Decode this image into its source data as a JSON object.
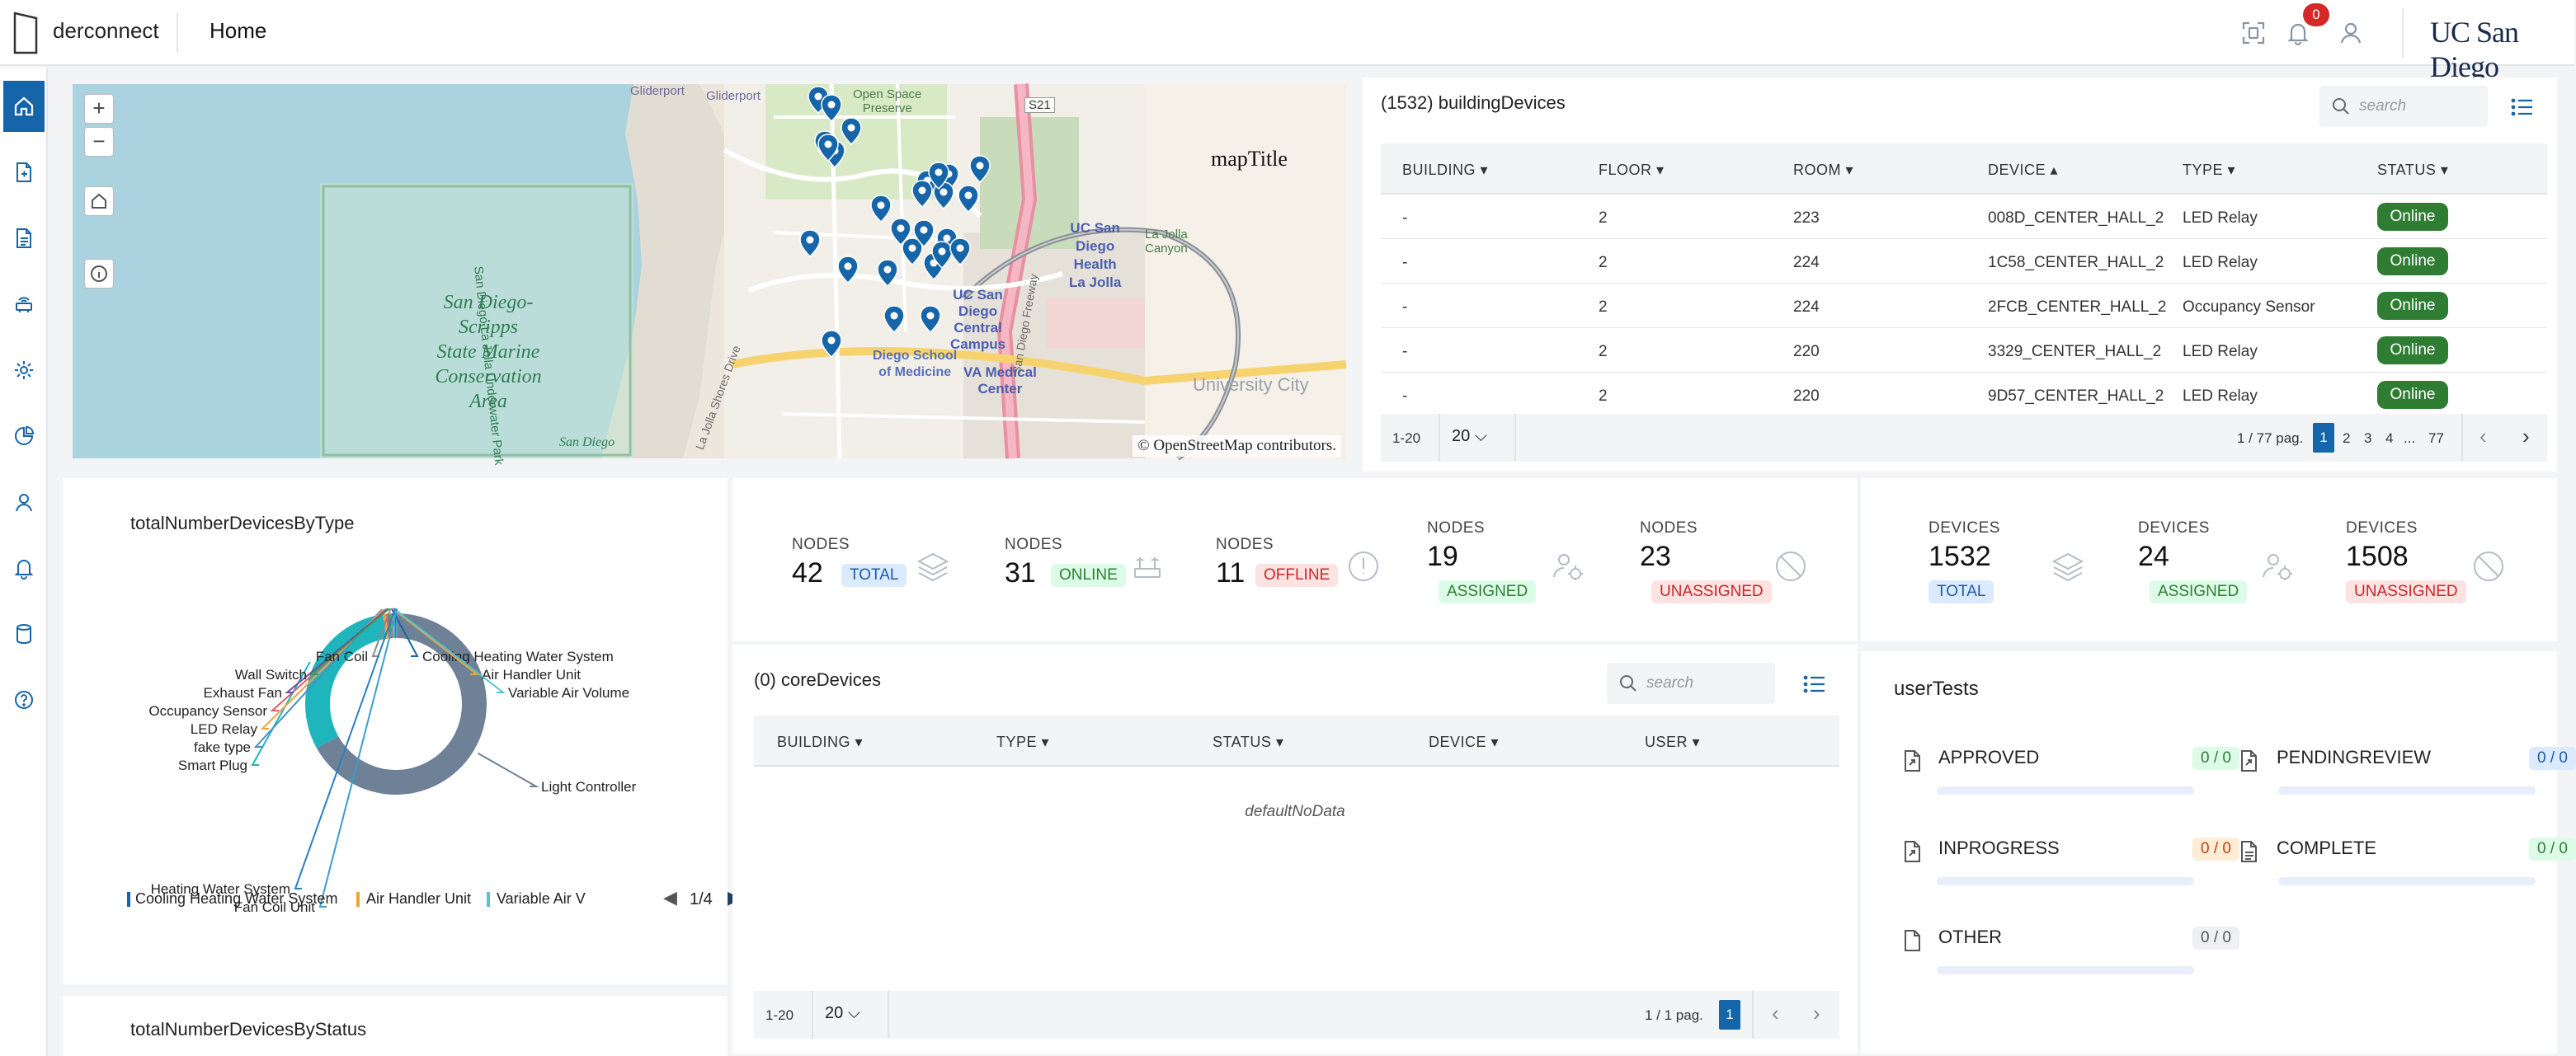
{
  "header": {
    "app_name": "derconnect",
    "breadcrumb": "Home",
    "notifications_count": "0",
    "brand": "UC San Diego",
    "icons": [
      "fullscreen-icon",
      "bell-icon",
      "user-icon"
    ]
  },
  "sidebar": {
    "items": [
      {
        "name": "home",
        "icon": "home-icon",
        "active": true
      },
      {
        "name": "documents-add",
        "icon": "file-plus-icon"
      },
      {
        "name": "reports",
        "icon": "file-text-icon"
      },
      {
        "name": "devices",
        "icon": "router-icon"
      },
      {
        "name": "settings",
        "icon": "gear-icon"
      },
      {
        "name": "analytics",
        "icon": "pie-chart-icon"
      },
      {
        "name": "users",
        "icon": "user-icon"
      },
      {
        "name": "notifications",
        "icon": "bell-icon"
      },
      {
        "name": "database",
        "icon": "database-icon"
      },
      {
        "name": "help",
        "icon": "help-icon"
      }
    ]
  },
  "map": {
    "title": "mapTitle",
    "zoom_in": "+",
    "zoom_out": "−",
    "attribution": "© OpenStreetMap contributors.",
    "labels": {
      "reserve": "San Diego-\nScripps\nState Marine\nConservation\nArea",
      "campus": "UC San\nDiego\nCentral\nCampus",
      "health": "UC San\nDiego\nHealth\nLa Jolla",
      "va": "VA Medical\nCenter",
      "school": "Diego School\nof Medicine",
      "university_city": "University City",
      "gliderport1": "Gliderport",
      "gliderport2": "Gliderport",
      "open_space": "Open Space\nPreserve",
      "route": "S21",
      "la_jolla_canyon": "La Jolla\nCanyon",
      "underwater_park": "San Diego La Jolla Underwater Park",
      "shores": "La Jolla Shores Drive",
      "freeway": "San Diego Freeway",
      "sd": "San Diego"
    }
  },
  "building_devices": {
    "title": "(1532) buildingDevices",
    "search_placeholder": "search",
    "columns": [
      "BUILDING",
      "FLOOR",
      "ROOM",
      "DEVICE",
      "TYPE",
      "STATUS"
    ],
    "rows": [
      {
        "building": "-",
        "floor": "2",
        "room": "223",
        "device": "008D_CENTER_HALL_2",
        "type": "LED Relay",
        "status": "Online"
      },
      {
        "building": "-",
        "floor": "2",
        "room": "224",
        "device": "1C58_CENTER_HALL_2",
        "type": "LED Relay",
        "status": "Online"
      },
      {
        "building": "-",
        "floor": "2",
        "room": "224",
        "device": "2FCB_CENTER_HALL_2",
        "type": "Occupancy Sensor",
        "status": "Online"
      },
      {
        "building": "-",
        "floor": "2",
        "room": "220",
        "device": "3329_CENTER_HALL_2",
        "type": "LED Relay",
        "status": "Online"
      },
      {
        "building": "-",
        "floor": "2",
        "room": "220",
        "device": "9D57_CENTER_HALL_2",
        "type": "LED Relay",
        "status": "Online"
      }
    ],
    "range": "1-20",
    "page_size": "20",
    "page_info": "1 / 77 pag.",
    "pages": [
      "1",
      "2",
      "3",
      "4",
      "...",
      "77"
    ]
  },
  "devices_by_type": {
    "title": "totalNumberDevicesByType",
    "legend": [
      "Cooling Heating Water System",
      "Air Handler Unit",
      "Variable Air V"
    ],
    "legend_page": "1/4",
    "chart_data": {
      "type": "pie",
      "categories": [
        "Light Controller",
        "Smart Plug",
        "fake type",
        "LED Relay",
        "Occupancy Sensor",
        "Exhaust Fan",
        "Wall Switch",
        "Fan Coil",
        "Cooling Heating Water System",
        "Air Handler Unit",
        "Variable Air Volume",
        "Heating Water System",
        "Fan Coil Unit"
      ],
      "values": [
        1020,
        470,
        2,
        8,
        6,
        2,
        4,
        3,
        2,
        3,
        3,
        5,
        4
      ],
      "colors": [
        "#6f8196",
        "#1fb5bc",
        "#4a8fc4",
        "#f4a142",
        "#d95f6a",
        "#6b4fa1",
        "#3c9d5d",
        "#8a8a8a",
        "#1565a8",
        "#e8a735",
        "#56c3cf",
        "#2a7fbf",
        "#3a9ec9"
      ],
      "title": "totalNumberDevicesByType"
    }
  },
  "devices_by_status_title": "totalNumberDevicesByStatus",
  "nodes": [
    {
      "label": "NODES",
      "value": "42",
      "tag": "TOTAL",
      "icon": "layers-icon"
    },
    {
      "label": "NODES",
      "value": "31",
      "tag": "ONLINE",
      "icon": "antenna-icon"
    },
    {
      "label": "NODES",
      "value": "11",
      "tag": "OFFLINE",
      "icon": "alert-circle-icon"
    },
    {
      "label": "NODES",
      "value": "19",
      "tag": "ASSIGNED",
      "icon": "user-gear-icon"
    },
    {
      "label": "NODES",
      "value": "23",
      "tag": "UNASSIGNED",
      "icon": "ban-icon"
    }
  ],
  "devices_stats": [
    {
      "label": "DEVICES",
      "value": "1532",
      "tag": "TOTAL",
      "icon": "layers-icon"
    },
    {
      "label": "DEVICES",
      "value": "24",
      "tag": "ASSIGNED",
      "icon": "user-gear-icon"
    },
    {
      "label": "DEVICES",
      "value": "1508",
      "tag": "UNASSIGNED",
      "icon": "ban-icon"
    }
  ],
  "core_devices": {
    "title": "(0) coreDevices",
    "search_placeholder": "search",
    "columns": [
      "BUILDING",
      "TYPE",
      "STATUS",
      "DEVICE",
      "USER"
    ],
    "empty_text": "defaultNoData",
    "range": "1-20",
    "page_size": "20",
    "page_info": "1 / 1 pag.",
    "page": "1"
  },
  "user_tests": {
    "title": "userTests",
    "items": [
      {
        "label": "APPROVED",
        "value": "0 / 0",
        "color": "green"
      },
      {
        "label": "PENDINGREVIEW",
        "value": "0 / 0",
        "color": "blue"
      },
      {
        "label": "INPROGRESS",
        "value": "0 / 0",
        "color": "orange"
      },
      {
        "label": "COMPLETE",
        "value": "0 / 0",
        "color": "green"
      },
      {
        "label": "OTHER",
        "value": "0 / 0",
        "color": "gray"
      }
    ]
  }
}
